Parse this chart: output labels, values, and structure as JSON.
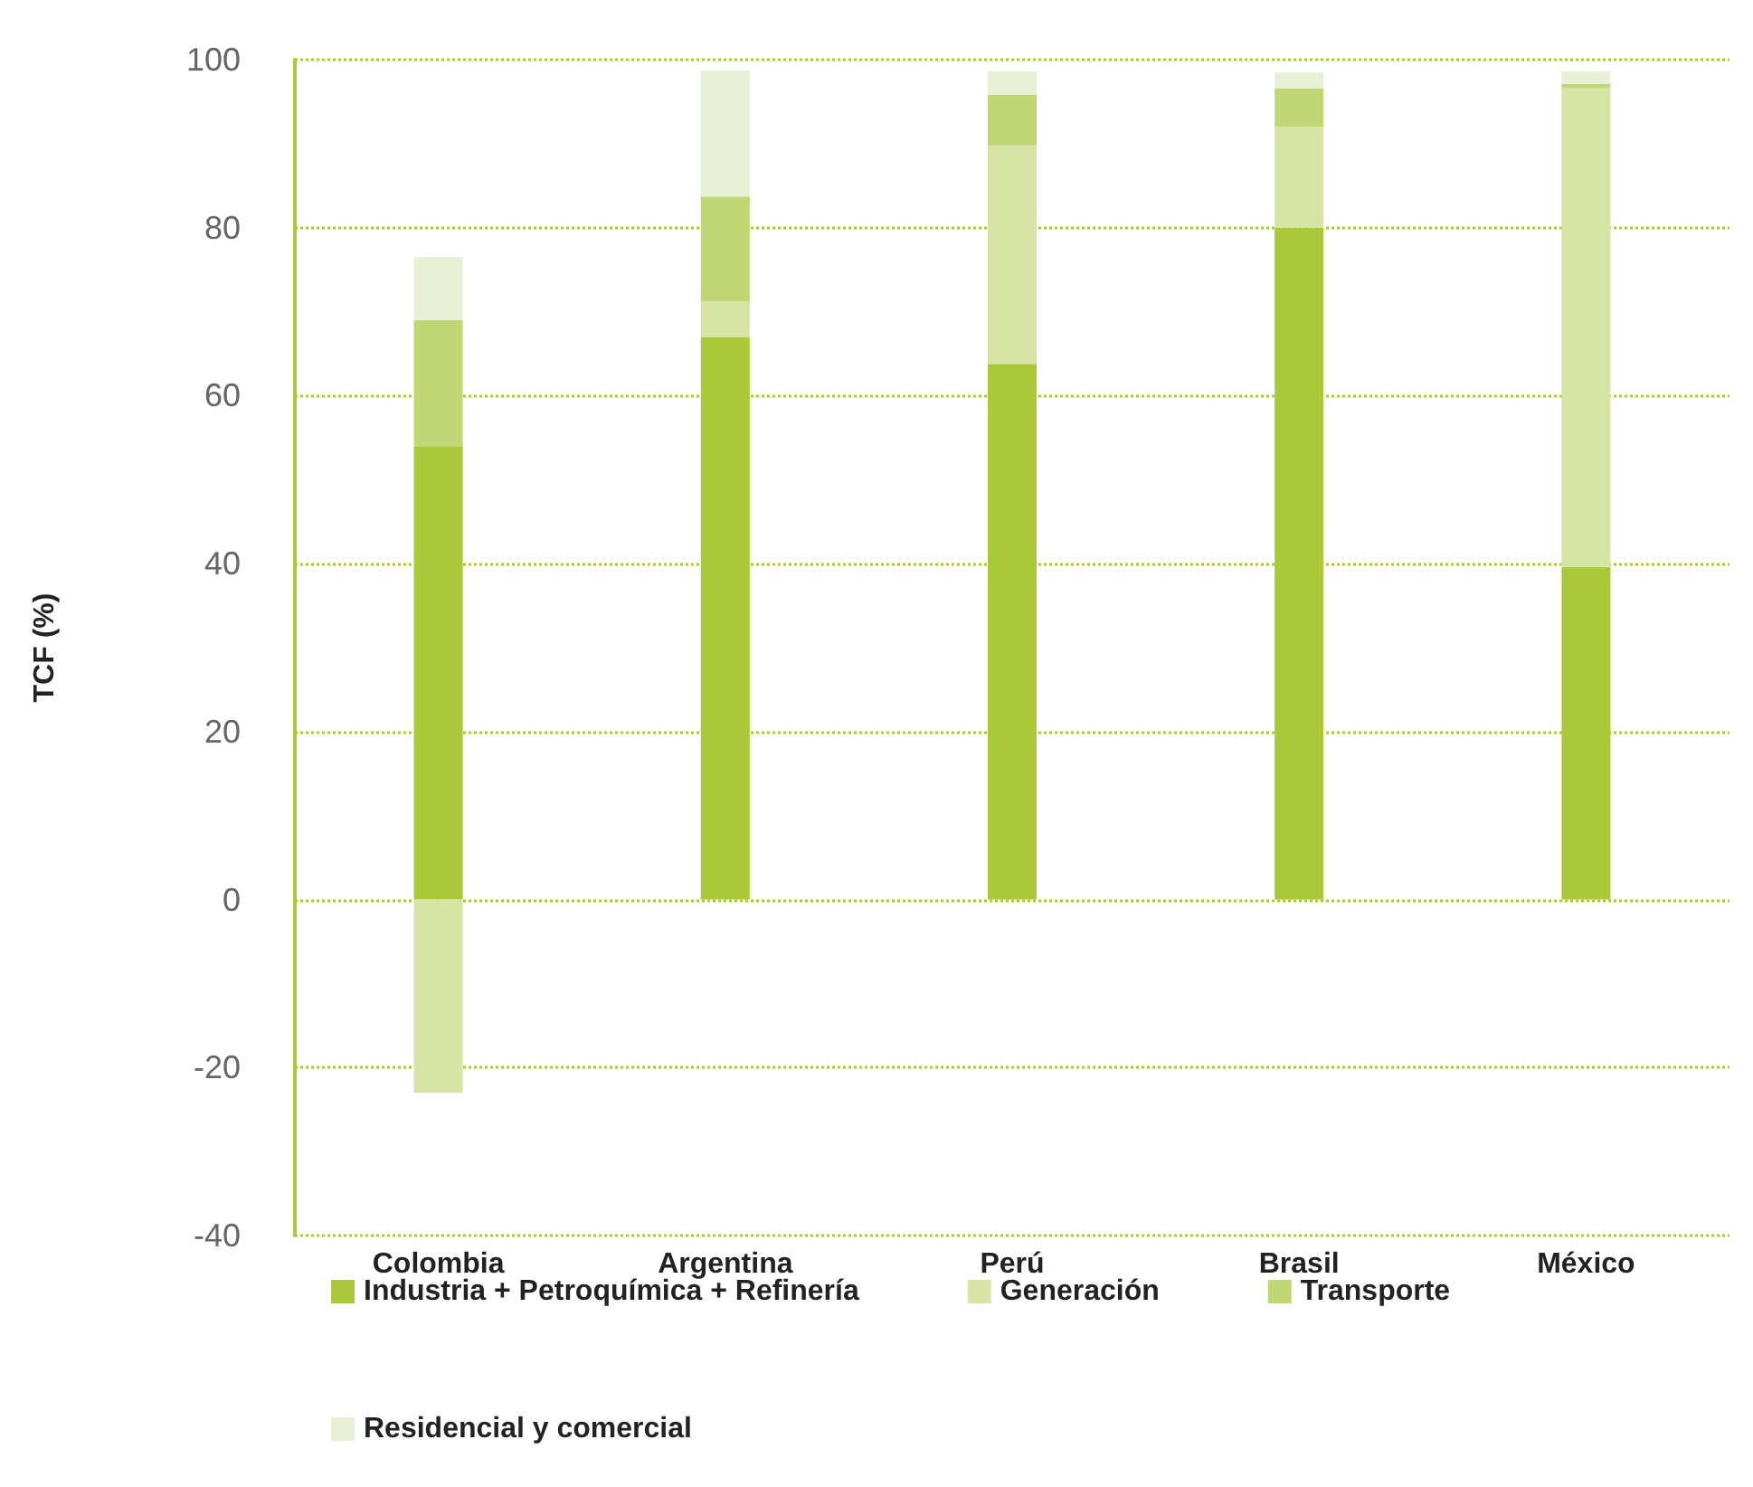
{
  "chart_data": {
    "type": "bar",
    "stacked": true,
    "ylabel": "TCF (%)",
    "categories": [
      "Colombia",
      "Argentina",
      "Perú",
      "Brasil",
      "México"
    ],
    "series": [
      {
        "name": "Industria + Petroquímica + Refinería",
        "color": "#a9c938",
        "values": [
          54,
          67,
          63.8,
          80,
          39.6
        ]
      },
      {
        "name": "Generación",
        "color": "#d7e4a6",
        "values": [
          -23,
          4.2,
          26,
          12,
          57
        ]
      },
      {
        "name": "Transporte",
        "color": "#c1d674",
        "values": [
          15,
          12.5,
          6,
          4.6,
          0.5
        ]
      },
      {
        "name": "Residencial y comercial",
        "color": "#e8f1d6",
        "values": [
          7.5,
          15,
          2.8,
          1.9,
          1.5
        ]
      }
    ],
    "ylim": [
      -40,
      100
    ],
    "yticks": [
      -40,
      -20,
      0,
      20,
      40,
      60,
      80,
      100
    ],
    "grid": "y",
    "legend": "bottom"
  }
}
